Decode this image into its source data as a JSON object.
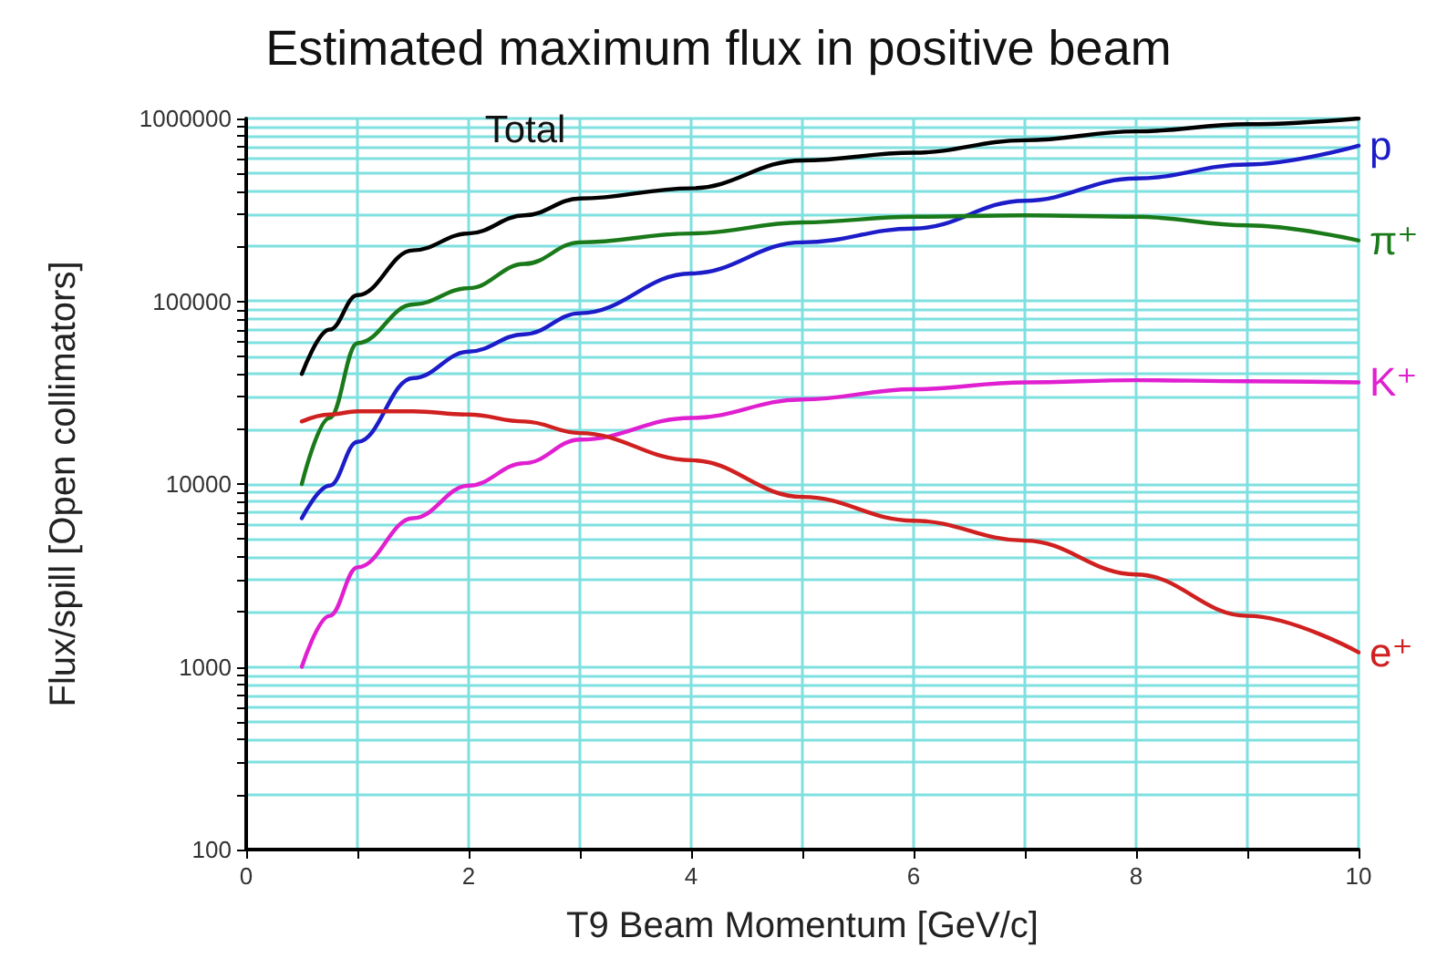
{
  "chart_data": {
    "type": "line",
    "title": "Estimated maximum flux in positive beam",
    "xlabel": "T9 Beam Momentum [GeV/c]",
    "ylabel": "Flux/spill [Open collimators]",
    "x": [
      0.5,
      0.75,
      1,
      1.5,
      2,
      2.5,
      3,
      4,
      5,
      6,
      7,
      8,
      9,
      10
    ],
    "series": [
      {
        "name": "Total",
        "color": "#000000",
        "values": [
          40000,
          70000,
          108000,
          190000,
          235000,
          295000,
          365000,
          415000,
          590000,
          650000,
          760000,
          850000,
          930000,
          1000000
        ]
      },
      {
        "name": "p",
        "color": "#1c1cc8",
        "values": [
          6500,
          9800,
          17000,
          38000,
          53000,
          66000,
          86000,
          142000,
          210000,
          250000,
          355000,
          470000,
          560000,
          710000
        ]
      },
      {
        "name": "π⁺",
        "color": "#1a7a1a",
        "values": [
          10000,
          23000,
          59000,
          96000,
          118000,
          160000,
          210000,
          235000,
          270000,
          290000,
          295000,
          290000,
          260000,
          215000
        ]
      },
      {
        "name": "K⁺",
        "color": "#e020d0",
        "values": [
          1000,
          1900,
          3500,
          6500,
          9800,
          13000,
          17500,
          23000,
          29000,
          33000,
          36000,
          37000,
          36500,
          36000
        ]
      },
      {
        "name": "e⁺",
        "color": "#d02020",
        "values": [
          22000,
          24000,
          25000,
          25000,
          24000,
          22000,
          19000,
          13500,
          8500,
          6300,
          4900,
          3200,
          1900,
          1200
        ]
      }
    ],
    "xlim": [
      0,
      10
    ],
    "xticks": [
      0,
      {
        "value": 1,
        "label": null
      },
      2,
      {
        "value": 3,
        "label": null
      },
      4,
      {
        "value": 5,
        "label": null
      },
      6,
      {
        "value": 7,
        "label": null
      },
      8,
      {
        "value": 9,
        "label": null
      },
      10
    ],
    "ylim": [
      100,
      1000000
    ],
    "yticks": [
      100,
      {
        "value": 200,
        "label": null
      },
      {
        "value": 300,
        "label": null
      },
      {
        "value": 400,
        "label": null
      },
      {
        "value": 500,
        "label": null
      },
      {
        "value": 600,
        "label": null
      },
      {
        "value": 700,
        "label": null
      },
      {
        "value": 800,
        "label": null
      },
      {
        "value": 900,
        "label": null
      },
      1000,
      {
        "value": 2000,
        "label": null
      },
      {
        "value": 3000,
        "label": null
      },
      {
        "value": 4000,
        "label": null
      },
      {
        "value": 5000,
        "label": null
      },
      {
        "value": 6000,
        "label": null
      },
      {
        "value": 7000,
        "label": null
      },
      {
        "value": 8000,
        "label": null
      },
      {
        "value": 9000,
        "label": null
      },
      10000,
      {
        "value": 20000,
        "label": null
      },
      {
        "value": 30000,
        "label": null
      },
      {
        "value": 40000,
        "label": null
      },
      {
        "value": 50000,
        "label": null
      },
      {
        "value": 60000,
        "label": null
      },
      {
        "value": 70000,
        "label": null
      },
      {
        "value": 80000,
        "label": null
      },
      {
        "value": 90000,
        "label": null
      },
      100000,
      {
        "value": 200000,
        "label": null
      },
      {
        "value": 300000,
        "label": null
      },
      {
        "value": 400000,
        "label": null
      },
      {
        "value": 500000,
        "label": null
      },
      {
        "value": 600000,
        "label": null
      },
      {
        "value": 700000,
        "label": null
      },
      {
        "value": 800000,
        "label": null
      },
      {
        "value": 900000,
        "label": null
      },
      1000000
    ],
    "log": "y",
    "grid": true,
    "legend": false,
    "marker": "none",
    "line_style": "solid"
  }
}
